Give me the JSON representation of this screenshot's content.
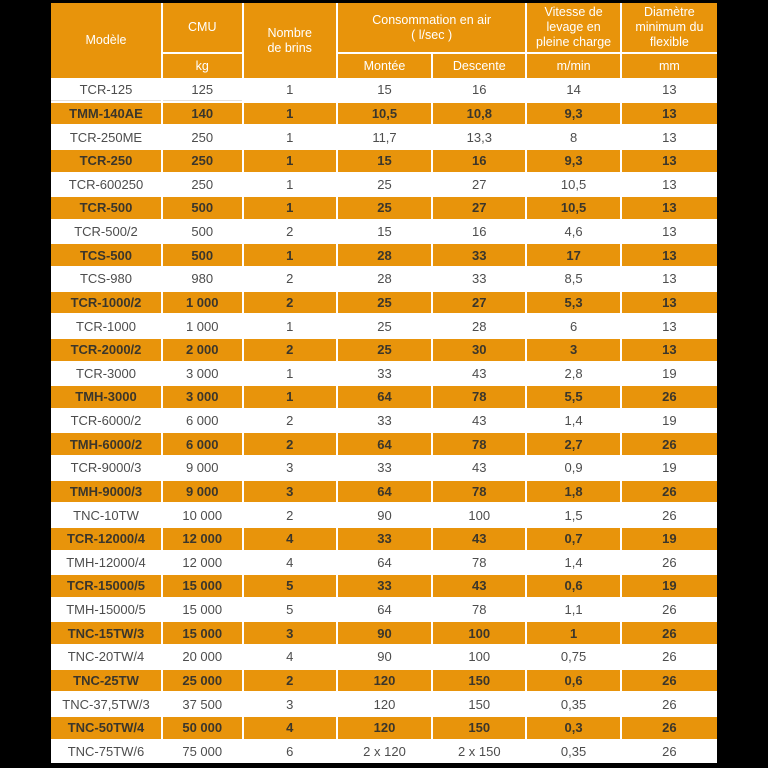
{
  "table": {
    "header": {
      "modele": "Modèle",
      "cmu": "CMU",
      "cmu_unit": "kg",
      "brins": "Nombre\nde brins",
      "conso": "Consommation en air\n( l/sec )",
      "conso_up": "Montée",
      "conso_down": "Descente",
      "vitesse": "Vitesse de\nlevage en\npleine charge",
      "vitesse_unit": "m/min",
      "diametre": "Diamètre\nminimum du\nflexible",
      "diametre_unit": "mm"
    },
    "columns": [
      "model",
      "cmu_kg",
      "nombre_de_brins",
      "montee",
      "descente",
      "vitesse_m_min",
      "diametre_mm"
    ],
    "rows": [
      {
        "highlight": false,
        "cells": [
          "TCR-125",
          "125",
          "1",
          "15",
          "16",
          "14",
          "13"
        ]
      },
      {
        "highlight": true,
        "cells": [
          "TMM-140AE",
          "140",
          "1",
          "10,5",
          "10,8",
          "9,3",
          "13"
        ]
      },
      {
        "highlight": false,
        "cells": [
          "TCR-250ME",
          "250",
          "1",
          "11,7",
          "13,3",
          "8",
          "13"
        ]
      },
      {
        "highlight": true,
        "cells": [
          "TCR-250",
          "250",
          "1",
          "15",
          "16",
          "9,3",
          "13"
        ]
      },
      {
        "highlight": false,
        "cells": [
          "TCR-600250",
          "250",
          "1",
          "25",
          "27",
          "10,5",
          "13"
        ]
      },
      {
        "highlight": true,
        "cells": [
          "TCR-500",
          "500",
          "1",
          "25",
          "27",
          "10,5",
          "13"
        ]
      },
      {
        "highlight": false,
        "cells": [
          "TCR-500/2",
          "500",
          "2",
          "15",
          "16",
          "4,6",
          "13"
        ]
      },
      {
        "highlight": true,
        "cells": [
          "TCS-500",
          "500",
          "1",
          "28",
          "33",
          "17",
          "13"
        ]
      },
      {
        "highlight": false,
        "cells": [
          "TCS-980",
          "980",
          "2",
          "28",
          "33",
          "8,5",
          "13"
        ]
      },
      {
        "highlight": true,
        "cells": [
          "TCR-1000/2",
          "1 000",
          "2",
          "25",
          "27",
          "5,3",
          "13"
        ]
      },
      {
        "highlight": false,
        "cells": [
          "TCR-1000",
          "1 000",
          "1",
          "25",
          "28",
          "6",
          "13"
        ]
      },
      {
        "highlight": true,
        "cells": [
          "TCR-2000/2",
          "2 000",
          "2",
          "25",
          "30",
          "3",
          "13"
        ]
      },
      {
        "highlight": false,
        "cells": [
          "TCR-3000",
          "3 000",
          "1",
          "33",
          "43",
          "2,8",
          "19"
        ]
      },
      {
        "highlight": true,
        "cells": [
          "TMH-3000",
          "3 000",
          "1",
          "64",
          "78",
          "5,5",
          "26"
        ]
      },
      {
        "highlight": false,
        "cells": [
          "TCR-6000/2",
          "6 000",
          "2",
          "33",
          "43",
          "1,4",
          "19"
        ]
      },
      {
        "highlight": true,
        "cells": [
          "TMH-6000/2",
          "6 000",
          "2",
          "64",
          "78",
          "2,7",
          "26"
        ]
      },
      {
        "highlight": false,
        "cells": [
          "TCR-9000/3",
          "9 000",
          "3",
          "33",
          "43",
          "0,9",
          "19"
        ]
      },
      {
        "highlight": true,
        "cells": [
          "TMH-9000/3",
          "9 000",
          "3",
          "64",
          "78",
          "1,8",
          "26"
        ]
      },
      {
        "highlight": false,
        "cells": [
          "TNC-10TW",
          "10 000",
          "2",
          "90",
          "100",
          "1,5",
          "26"
        ]
      },
      {
        "highlight": true,
        "cells": [
          "TCR-12000/4",
          "12 000",
          "4",
          "33",
          "43",
          "0,7",
          "19"
        ]
      },
      {
        "highlight": false,
        "cells": [
          "TMH-12000/4",
          "12 000",
          "4",
          "64",
          "78",
          "1,4",
          "26"
        ]
      },
      {
        "highlight": true,
        "cells": [
          "TCR-15000/5",
          "15 000",
          "5",
          "33",
          "43",
          "0,6",
          "19"
        ]
      },
      {
        "highlight": false,
        "cells": [
          "TMH-15000/5",
          "15 000",
          "5",
          "64",
          "78",
          "1,1",
          "26"
        ]
      },
      {
        "highlight": true,
        "cells": [
          "TNC-15TW/3",
          "15 000",
          "3",
          "90",
          "100",
          "1",
          "26"
        ]
      },
      {
        "highlight": false,
        "cells": [
          "TNC-20TW/4",
          "20 000",
          "4",
          "90",
          "100",
          "0,75",
          "26"
        ]
      },
      {
        "highlight": true,
        "cells": [
          "TNC-25TW",
          "25 000",
          "2",
          "120",
          "150",
          "0,6",
          "26"
        ]
      },
      {
        "highlight": false,
        "cells": [
          "TNC-37,5TW/3",
          "37 500",
          "3",
          "120",
          "150",
          "0,35",
          "26"
        ]
      },
      {
        "highlight": true,
        "cells": [
          "TNC-50TW/4",
          "50 000",
          "4",
          "120",
          "150",
          "0,3",
          "26"
        ]
      },
      {
        "highlight": false,
        "cells": [
          "TNC-75TW/6",
          "75 000",
          "6",
          "2 x 120",
          "2 x 150",
          "0,35",
          "26"
        ]
      }
    ],
    "colors": {
      "accent_orange": "#E8940B",
      "header_text": "#FFFFFF",
      "row_text": "#4D4D4D",
      "highlight_row_text": "#3B362B",
      "frame_background": "#000000",
      "row_background": "#FFFFFF"
    }
  }
}
